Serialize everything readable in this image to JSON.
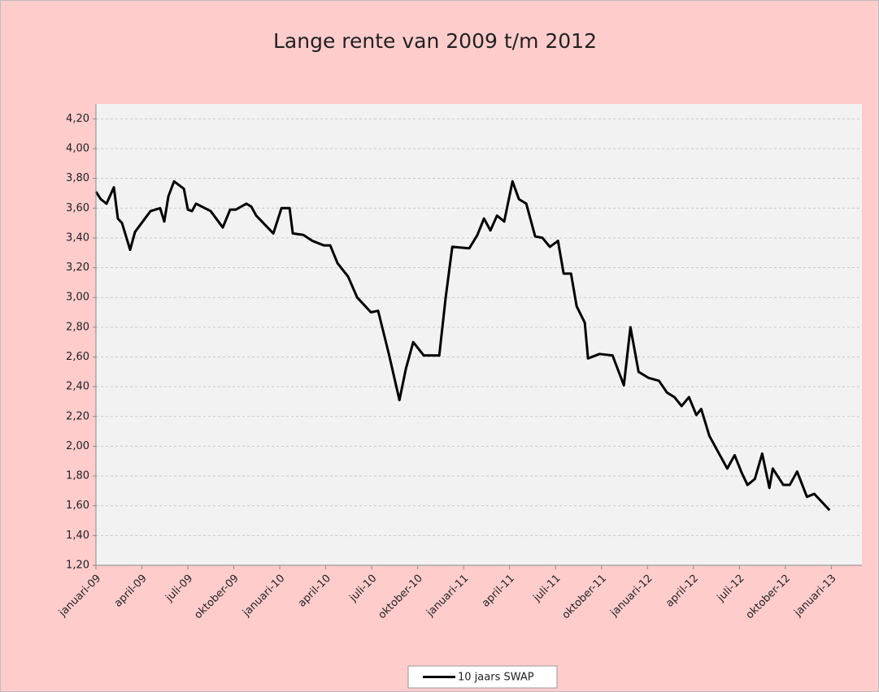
{
  "chart_data": {
    "type": "line",
    "title": "Lange rente van 2009 t/m 2012",
    "xlim": [
      0,
      50
    ],
    "xticks": [
      {
        "value": 0,
        "label": "januari-09"
      },
      {
        "value": 3,
        "label": "april-09"
      },
      {
        "value": 6,
        "label": "juli-09"
      },
      {
        "value": 9,
        "label": "oktober-09"
      },
      {
        "value": 12,
        "label": "januari-10"
      },
      {
        "value": 15,
        "label": "april-10"
      },
      {
        "value": 18,
        "label": "juli-10"
      },
      {
        "value": 21,
        "label": "oktober-10"
      },
      {
        "value": 24,
        "label": "januari-11"
      },
      {
        "value": 27,
        "label": "april-11"
      },
      {
        "value": 30,
        "label": "juli-11"
      },
      {
        "value": 33,
        "label": "oktober-11"
      },
      {
        "value": 36,
        "label": "januari-12"
      },
      {
        "value": 39,
        "label": "april-12"
      },
      {
        "value": 42,
        "label": "juli-12"
      },
      {
        "value": 45,
        "label": "oktober-12"
      },
      {
        "value": 48,
        "label": "januari-13"
      }
    ],
    "ylim": [
      1.2,
      4.3
    ],
    "yticks": [
      {
        "value": 1.2,
        "label": "1,20"
      },
      {
        "value": 1.4,
        "label": "1,40"
      },
      {
        "value": 1.6,
        "label": "1,60"
      },
      {
        "value": 1.8,
        "label": "1,80"
      },
      {
        "value": 2.0,
        "label": "2,00"
      },
      {
        "value": 2.2,
        "label": "2,20"
      },
      {
        "value": 2.4,
        "label": "2,40"
      },
      {
        "value": 2.6,
        "label": "2,60"
      },
      {
        "value": 2.8,
        "label": "2,80"
      },
      {
        "value": 3.0,
        "label": "3,00"
      },
      {
        "value": 3.2,
        "label": "3,20"
      },
      {
        "value": 3.4,
        "label": "3,40"
      },
      {
        "value": 3.6,
        "label": "3,60"
      },
      {
        "value": 3.8,
        "label": "3,80"
      },
      {
        "value": 4.0,
        "label": "4,00"
      },
      {
        "value": 4.2,
        "label": "4,20"
      }
    ],
    "grid": true,
    "legend": "bottom",
    "x": [
      0,
      0.32,
      0.69,
      1.17,
      1.43,
      1.7,
      2.23,
      2.55,
      3.56,
      4.19,
      4.46,
      4.73,
      5.1,
      5.74,
      6.0,
      6.27,
      6.53,
      7.49,
      8.28,
      8.76,
      9.13,
      9.82,
      10.14,
      10.46,
      11.58,
      12.11,
      12.64,
      12.85,
      13.54,
      14.13,
      14.87,
      15.29,
      15.77,
      16.46,
      17.05,
      17.95,
      18.42,
      19.12,
      19.81,
      20.23,
      20.71,
      21.4,
      22.41,
      22.83,
      23.26,
      24.37,
      24.9,
      25.33,
      25.75,
      26.18,
      26.65,
      27.19,
      27.61,
      28.09,
      28.67,
      29.15,
      29.63,
      30.16,
      30.53,
      31.01,
      31.38,
      31.91,
      32.12,
      32.87,
      33.72,
      34.46,
      34.89,
      35.42,
      36.06,
      36.75,
      37.28,
      37.76,
      38.23,
      38.71,
      39.19,
      39.51,
      40.04,
      40.57,
      41.21,
      41.69,
      42.16,
      42.53,
      43.01,
      43.49,
      43.96,
      44.18,
      44.87,
      45.29,
      45.77,
      46.41,
      46.89,
      47.89
    ],
    "series": [
      {
        "name": "10 jaars SWAP",
        "color": "#000000",
        "values": [
          3.71,
          3.66,
          3.63,
          3.74,
          3.53,
          3.5,
          3.32,
          3.44,
          3.58,
          3.6,
          3.51,
          3.68,
          3.78,
          3.73,
          3.59,
          3.58,
          3.63,
          3.58,
          3.47,
          3.59,
          3.59,
          3.63,
          3.61,
          3.55,
          3.43,
          3.6,
          3.6,
          3.43,
          3.42,
          3.38,
          3.35,
          3.35,
          3.23,
          3.14,
          3.0,
          2.9,
          2.91,
          2.62,
          2.31,
          2.52,
          2.7,
          2.61,
          2.61,
          3.0,
          3.34,
          3.33,
          3.42,
          3.53,
          3.45,
          3.55,
          3.51,
          3.78,
          3.66,
          3.63,
          3.41,
          3.4,
          3.34,
          3.38,
          3.16,
          3.16,
          2.94,
          2.83,
          2.59,
          2.62,
          2.61,
          2.41,
          2.8,
          2.5,
          2.46,
          2.44,
          2.36,
          2.33,
          2.27,
          2.33,
          2.21,
          2.25,
          2.07,
          1.97,
          1.85,
          1.94,
          1.82,
          1.74,
          1.78,
          1.95,
          1.72,
          1.85,
          1.74,
          1.74,
          1.83,
          1.66,
          1.68,
          1.57
        ]
      }
    ]
  }
}
